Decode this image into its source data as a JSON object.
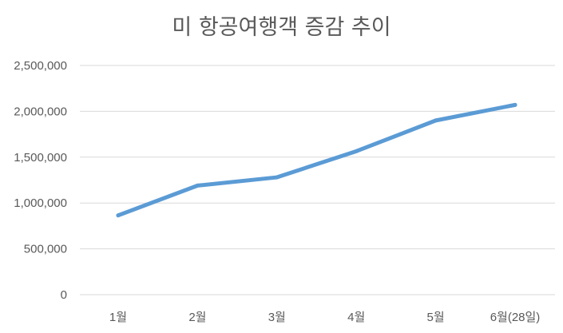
{
  "chart_data": {
    "type": "line",
    "title": "미 항공여행객 증감 추이",
    "categories": [
      "1월",
      "2월",
      "3월",
      "4월",
      "5월",
      "6월(28일)"
    ],
    "series": [
      {
        "values": [
          865000,
          1190000,
          1280000,
          1565000,
          1900000,
          2070000
        ]
      }
    ],
    "ylim": [
      0,
      2500000
    ],
    "yticks": [
      0,
      500000,
      1000000,
      1500000,
      2000000,
      2500000
    ],
    "ytick_labels": [
      "0",
      "500,000",
      "1,000,000",
      "1,500,000",
      "2,000,000",
      "2,500,000"
    ],
    "grid": true,
    "line_color": "#5b9bd5"
  }
}
